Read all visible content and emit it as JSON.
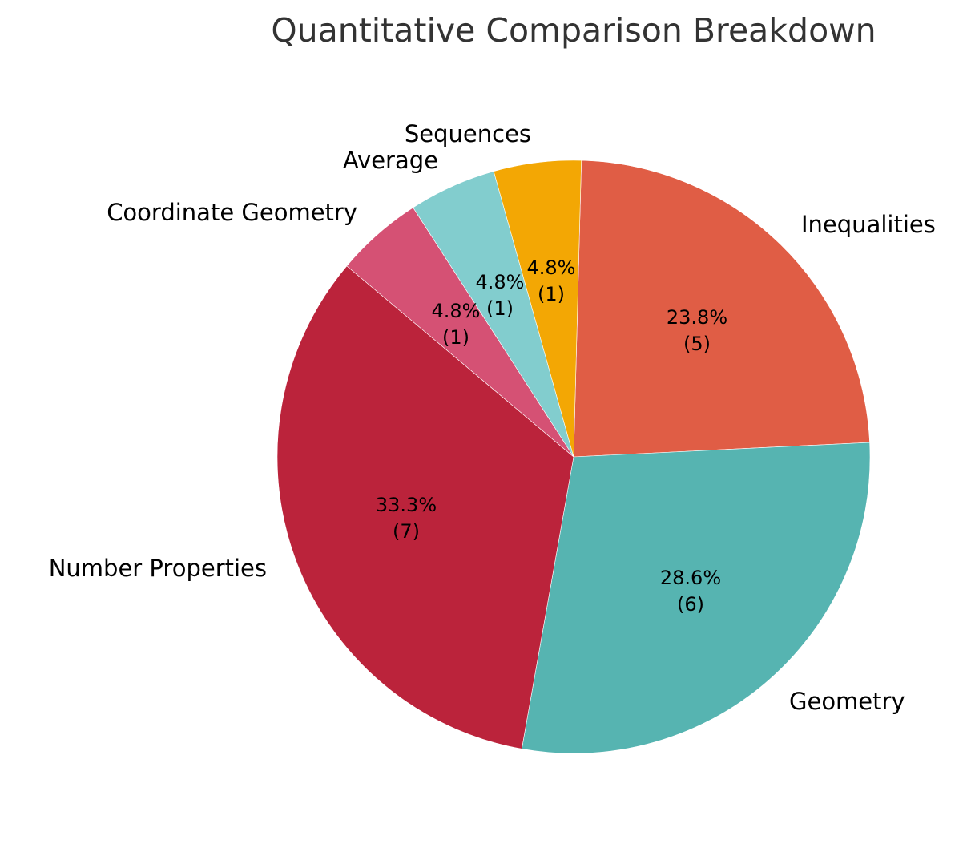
{
  "chart_data": {
    "type": "pie",
    "title": "Quantitative Comparison Breakdown",
    "categories": [
      "Inequalities",
      "Geometry",
      "Number Properties",
      "Coordinate Geometry",
      "Average",
      "Sequences"
    ],
    "values": [
      5,
      6,
      7,
      1,
      1,
      1
    ],
    "percentages": [
      "23.8%",
      "28.6%",
      "33.3%",
      "4.8%",
      "4.8%",
      "4.8%"
    ],
    "colors": [
      "#E05D45",
      "#56B4B1",
      "#BB233B",
      "#D55174",
      "#82CDCE",
      "#F3A704"
    ],
    "start_angle_deg": 88.5,
    "direction": "clockwise",
    "slices": [
      {
        "label": "Inequalities",
        "value": 5,
        "pct": "23.8%",
        "count": "(5)",
        "color": "#E05D45"
      },
      {
        "label": "Geometry",
        "value": 6,
        "pct": "28.6%",
        "count": "(6)",
        "color": "#56B4B1"
      },
      {
        "label": "Number Properties",
        "value": 7,
        "pct": "33.3%",
        "count": "(7)",
        "color": "#BB233B"
      },
      {
        "label": "Coordinate Geometry",
        "value": 1,
        "pct": "4.8%",
        "count": "(1)",
        "color": "#D55174"
      },
      {
        "label": "Average",
        "value": 1,
        "pct": "4.8%",
        "count": "(1)",
        "color": "#82CDCE"
      },
      {
        "label": "Sequences",
        "value": 1,
        "pct": "4.8%",
        "count": "(1)",
        "color": "#F3A704"
      }
    ]
  }
}
